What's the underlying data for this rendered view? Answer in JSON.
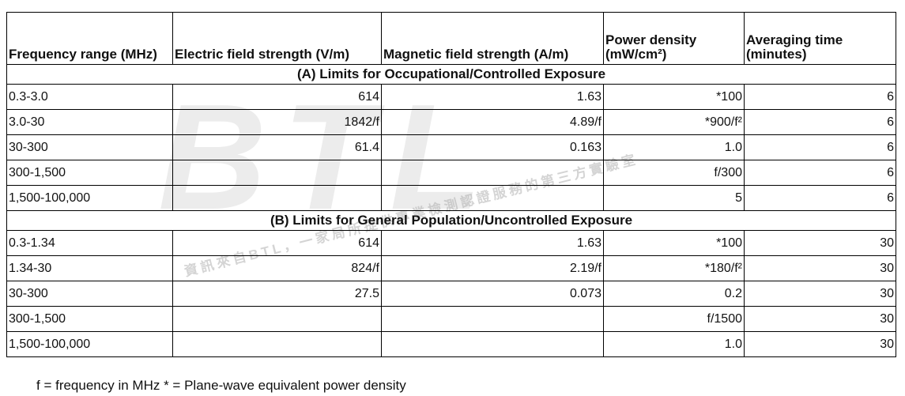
{
  "table": {
    "headers": [
      "Frequency range (MHz)",
      "Electric field strength (V/m)",
      "Magnetic field strength (A/m)",
      "Power density (mW/cm²)",
      "Averaging time (minutes)"
    ],
    "sections": [
      {
        "title": "(A) Limits for Occupational/Controlled Exposure",
        "rows": [
          [
            "0.3-3.0",
            "614",
            "1.63",
            "*100",
            "6"
          ],
          [
            "3.0-30",
            "1842/f",
            "4.89/f",
            "*900/f²",
            "6"
          ],
          [
            "30-300",
            "61.4",
            "0.163",
            "1.0",
            "6"
          ],
          [
            "300-1,500",
            null,
            null,
            "f/300",
            "6"
          ],
          [
            "1,500-100,000",
            null,
            null,
            "5",
            "6"
          ]
        ]
      },
      {
        "title": "(B) Limits for General Population/Uncontrolled Exposure",
        "rows": [
          [
            "0.3-1.34",
            "614",
            "1.63",
            "*100",
            "30"
          ],
          [
            "1.34-30",
            "824/f",
            "2.19/f",
            "*180/f²",
            "30"
          ],
          [
            "30-300",
            "27.5",
            "0.073",
            "0.2",
            "30"
          ],
          [
            "300-1,500",
            null,
            null,
            "f/1500",
            "30"
          ],
          [
            "1,500-100,000",
            null,
            null,
            "1.0",
            "30"
          ]
        ]
      }
    ]
  },
  "footnote": "f = frequency in MHz * = Plane-wave equivalent power density",
  "watermark": {
    "logo": "BTL",
    "text": "資訊來自BTL，一家局所提供專業檢測認證服務的第三方實驗室"
  }
}
